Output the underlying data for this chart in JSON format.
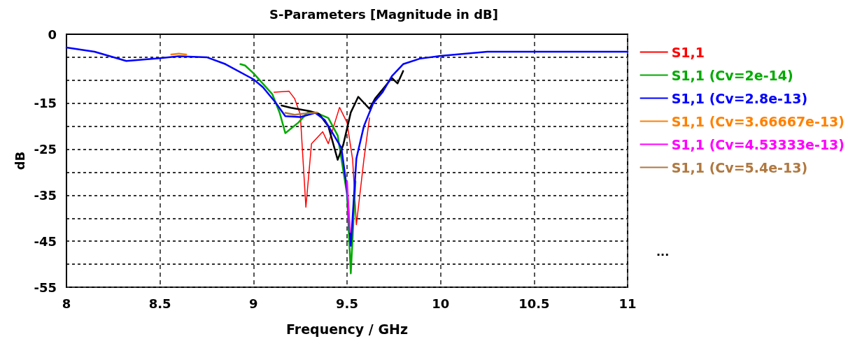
{
  "chart_data": {
    "type": "line",
    "title": "S-Parameters [Magnitude in dB]",
    "xlabel": "Frequency / GHz",
    "ylabel": "dB",
    "xlim": [
      8,
      11
    ],
    "xticks": [
      8,
      8.5,
      9,
      9.5,
      10,
      10.5,
      11
    ],
    "ylim": [
      -55,
      0
    ],
    "yticks": [
      0,
      {
        "value": -5,
        "label": null
      },
      {
        "value": -10,
        "label": null
      },
      -15,
      {
        "value": -20,
        "label": null
      },
      -25,
      {
        "value": -30,
        "label": null
      },
      -35,
      {
        "value": -40,
        "label": null
      },
      -45,
      {
        "value": -50,
        "label": null
      },
      -55
    ],
    "grid": true,
    "legend": "right",
    "marker": "none",
    "line_style": "solid",
    "annotations": [
      "..."
    ],
    "series": [
      {
        "name": "S1,1",
        "color": "#ff0000",
        "x": [
          9.11,
          9.19,
          9.22,
          9.25,
          9.28,
          9.31,
          9.37,
          9.4,
          9.46,
          9.5,
          9.53,
          9.55,
          9.59,
          9.62
        ],
        "values": [
          -12.6,
          -12.4,
          -14,
          -17.4,
          -37.6,
          -23.8,
          -21.2,
          -23.8,
          -15.9,
          -19.2,
          -27.3,
          -41.4,
          -27.3,
          -18.2
        ]
      },
      {
        "name": "S1,1 (Cv=2e-14)",
        "color": "#00aa00",
        "x": [
          8.93,
          8.955,
          9,
          9.1,
          9.14,
          9.17,
          9.24,
          9.29,
          9.33,
          9.4,
          9.45,
          9.5,
          9.52,
          9.545
        ],
        "values": [
          -6.5,
          -6.8,
          -8.5,
          -13,
          -17.1,
          -21.5,
          -19.2,
          -17,
          -17,
          -18.2,
          -22,
          -34.8,
          -52,
          -32
        ]
      },
      {
        "name": "S1,1 (Cv=2.8e-13)",
        "color": "#0000ff",
        "x": [
          8,
          8.15,
          8.32,
          8.5,
          8.6,
          8.75,
          8.85,
          9,
          9.05,
          9.115,
          9.17,
          9.25,
          9.33,
          9.38,
          9.47,
          9.5,
          9.52,
          9.55,
          9.59,
          9.64,
          9.69,
          9.74,
          9.8,
          9.89,
          10,
          10.25,
          10.5,
          11
        ],
        "values": [
          -2.9,
          -3.8,
          -5.8,
          -5.2,
          -4.8,
          -5,
          -6.5,
          -9.8,
          -11.5,
          -14.7,
          -17.8,
          -18,
          -17.1,
          -18.6,
          -24.7,
          -33.8,
          -46,
          -27,
          -20,
          -15,
          -12.6,
          -9.1,
          -6.5,
          -5.3,
          -4.7,
          -3.8,
          -3.8,
          -3.8
        ]
      },
      {
        "name": "S1,1 (Cv=3.66667e-13)",
        "color": "#ff8000",
        "x": [
          8.56,
          8.6,
          8.64
        ],
        "values": [
          -4.4,
          -4.2,
          -4.4
        ]
      },
      {
        "name": "S1,1 (Cv=4.53333e-13)",
        "color": "#ff00ff",
        "x": [
          9.5,
          9.508,
          9.516
        ],
        "values": [
          -32,
          -38,
          -43
        ]
      },
      {
        "name": "S1,1 (Cv=5.4e-13)",
        "color": "#b07840",
        "x": [
          9.17,
          9.22,
          9.28,
          9.34
        ],
        "values": [
          -17.1,
          -17.5,
          -17.2,
          -17.0
        ]
      },
      {
        "color": "#000000",
        "x": [
          9.15,
          9.2,
          9.3,
          9.35,
          9.4,
          9.45,
          9.48,
          9.52,
          9.56,
          9.62,
          9.65,
          9.7,
          9.74,
          9.77,
          9.8
        ],
        "values": [
          -15.5,
          -16,
          -16.7,
          -17.3,
          -20,
          -27.3,
          -24,
          -17,
          -13.6,
          -16.2,
          -14,
          -11.5,
          -9.5,
          -10.7,
          -8
        ]
      }
    ]
  }
}
